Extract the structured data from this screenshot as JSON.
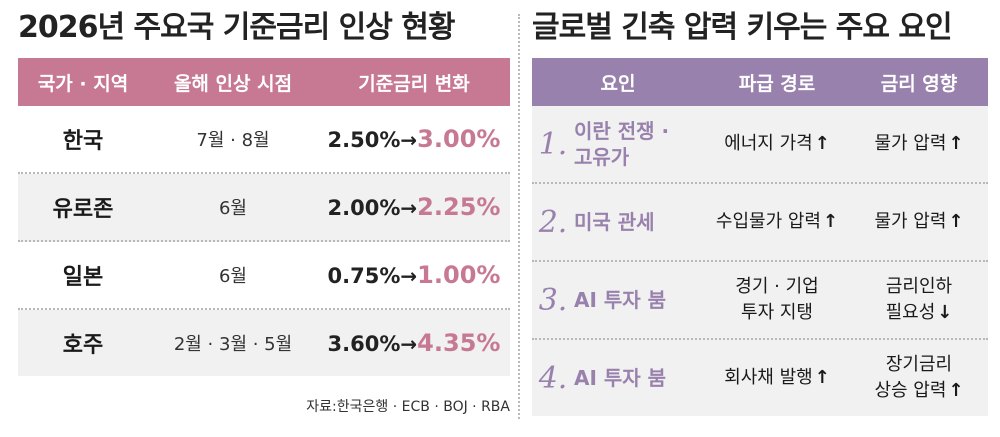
{
  "left": {
    "title": "2026년 주요국 기준금리 인상 현황",
    "headers": [
      "국가 · 지역",
      "올해 인상 시점",
      "기준금리 변화"
    ],
    "rows": [
      {
        "country": "한국",
        "timing": "7월 · 8월",
        "from": "2.50%",
        "to": "3.00%"
      },
      {
        "country": "유로존",
        "timing": "6월",
        "from": "2.00%",
        "to": "2.25%"
      },
      {
        "country": "일본",
        "timing": "6월",
        "from": "0.75%",
        "to": "1.00%"
      },
      {
        "country": "호주",
        "timing": "2월 · 3월 · 5월",
        "from": "3.60%",
        "to": "4.35%"
      }
    ],
    "arrow": "→",
    "source": "자료:한국은행 · ECB · BOJ · RBA"
  },
  "right": {
    "title": "글로벌 긴축 압력 키우는 주요 요인",
    "headers": [
      "요인",
      "파급 경로",
      "금리 영향"
    ],
    "rows": [
      {
        "num": "1.",
        "factor_l1": "이란 전쟁 ·",
        "factor_l2": "고유가",
        "path_l1": "에너지 가격",
        "path_l2": "",
        "path_arrow": "↑",
        "effect_l1": "물가 압력",
        "effect_l2": "",
        "effect_arrow": "↑"
      },
      {
        "num": "2.",
        "factor_l1": "미국 관세",
        "factor_l2": "",
        "path_l1": "수입물가 압력",
        "path_l2": "",
        "path_arrow": "↑",
        "effect_l1": "물가 압력",
        "effect_l2": "",
        "effect_arrow": "↑"
      },
      {
        "num": "3.",
        "factor_l1": "AI 투자 붐",
        "factor_l2": "",
        "path_l1": "경기 · 기업",
        "path_l2": "투자 지탱",
        "path_arrow": "",
        "effect_l1": "금리인하",
        "effect_l2": "필요성",
        "effect_arrow": "↓"
      },
      {
        "num": "4.",
        "factor_l1": "AI 투자 붐",
        "factor_l2": "",
        "path_l1": "회사채 발행",
        "path_l2": "",
        "path_arrow": "↑",
        "effect_l1": "장기금리",
        "effect_l2": "상승 압력",
        "effect_arrow": "↑"
      }
    ]
  },
  "colors": {
    "pink": "#c77892",
    "purple": "#9981ad",
    "shade": "#f1f1f1"
  }
}
